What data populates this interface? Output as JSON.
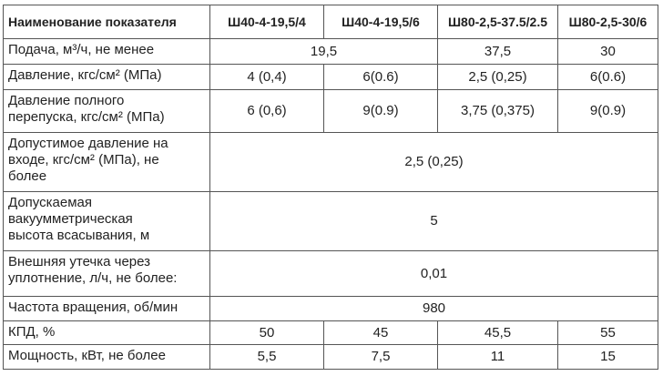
{
  "table": {
    "header": [
      "Наименование показателя",
      "Ш40-4-19,5/4",
      "Ш40-4-19,5/6",
      "Ш80-2,5-37.5/2.5",
      "Ш80-2,5-30/6"
    ],
    "rows": [
      [
        "Подача, м³/ч, не менее",
        "19,5",
        "37,5",
        "30"
      ],
      [
        "Давление, кгс/см² (МПа)",
        "4 (0,4)",
        "6(0.6)",
        "2,5 (0,25)",
        "6(0.6)"
      ],
      [
        "Давление полного\nперепуска, кгс/см² (МПа)",
        "6 (0,6)",
        "9(0.9)",
        "3,75 (0,375)",
        "9(0.9)"
      ],
      [
        "Допустимое давление на\nвходе, кгс/см² (МПа), не\nболее",
        "2,5 (0,25)"
      ],
      [
        "Допускаемая\nвакуумметрическая\nвысота всасывания, м",
        "5"
      ],
      [
        "Внешняя утечка через\nуплотнение, л/ч, не более:",
        "0,01"
      ],
      [
        "Частота вращения, об/мин",
        "980"
      ],
      [
        "КПД, %",
        "50",
        "45",
        "45,5",
        "55"
      ],
      [
        "Мощность, кВт, не более",
        "5,5",
        "7,5",
        "11",
        "15"
      ]
    ]
  }
}
